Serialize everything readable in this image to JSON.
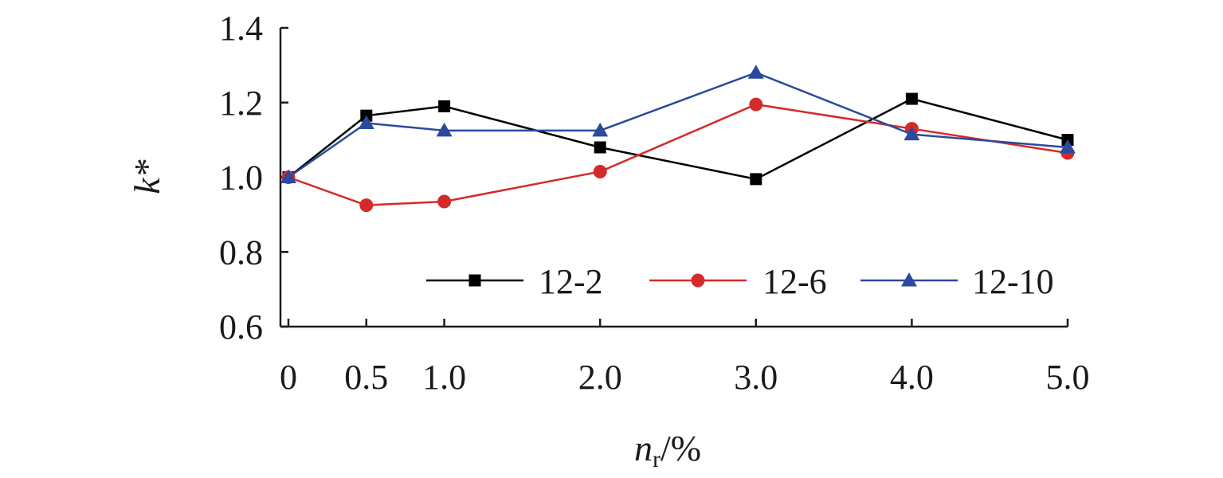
{
  "chart_data": {
    "type": "line",
    "x": [
      0,
      0.5,
      1.0,
      2.0,
      3.0,
      4.0,
      5.0
    ],
    "x_tick_labels": [
      "0",
      "0.5",
      "1.0",
      "2.0",
      "3.0",
      "4.0",
      "5.0"
    ],
    "y_tick_values": [
      0.6,
      0.8,
      1.0,
      1.2,
      1.4
    ],
    "y_tick_labels": [
      "0.6",
      "0.8",
      "1.0",
      "1.2",
      "1.4"
    ],
    "ylim": [
      0.6,
      1.4
    ],
    "xlabel": {
      "main": "n",
      "sub": "r",
      "suffix": "/%"
    },
    "ylabel": "k*",
    "grid": false,
    "legend_position": "bottom-right",
    "series": [
      {
        "name": "12-2",
        "marker": "square",
        "color": "#000000",
        "values": [
          1.0,
          1.165,
          1.19,
          1.08,
          0.995,
          1.21,
          1.1
        ]
      },
      {
        "name": "12-6",
        "marker": "circle",
        "color": "#d42a2a",
        "values": [
          1.0,
          0.925,
          0.935,
          1.015,
          1.195,
          1.13,
          1.065
        ]
      },
      {
        "name": "12-10",
        "marker": "triangle",
        "color": "#2b4a9e",
        "values": [
          1.0,
          1.145,
          1.125,
          1.125,
          1.28,
          1.115,
          1.08
        ]
      }
    ]
  }
}
